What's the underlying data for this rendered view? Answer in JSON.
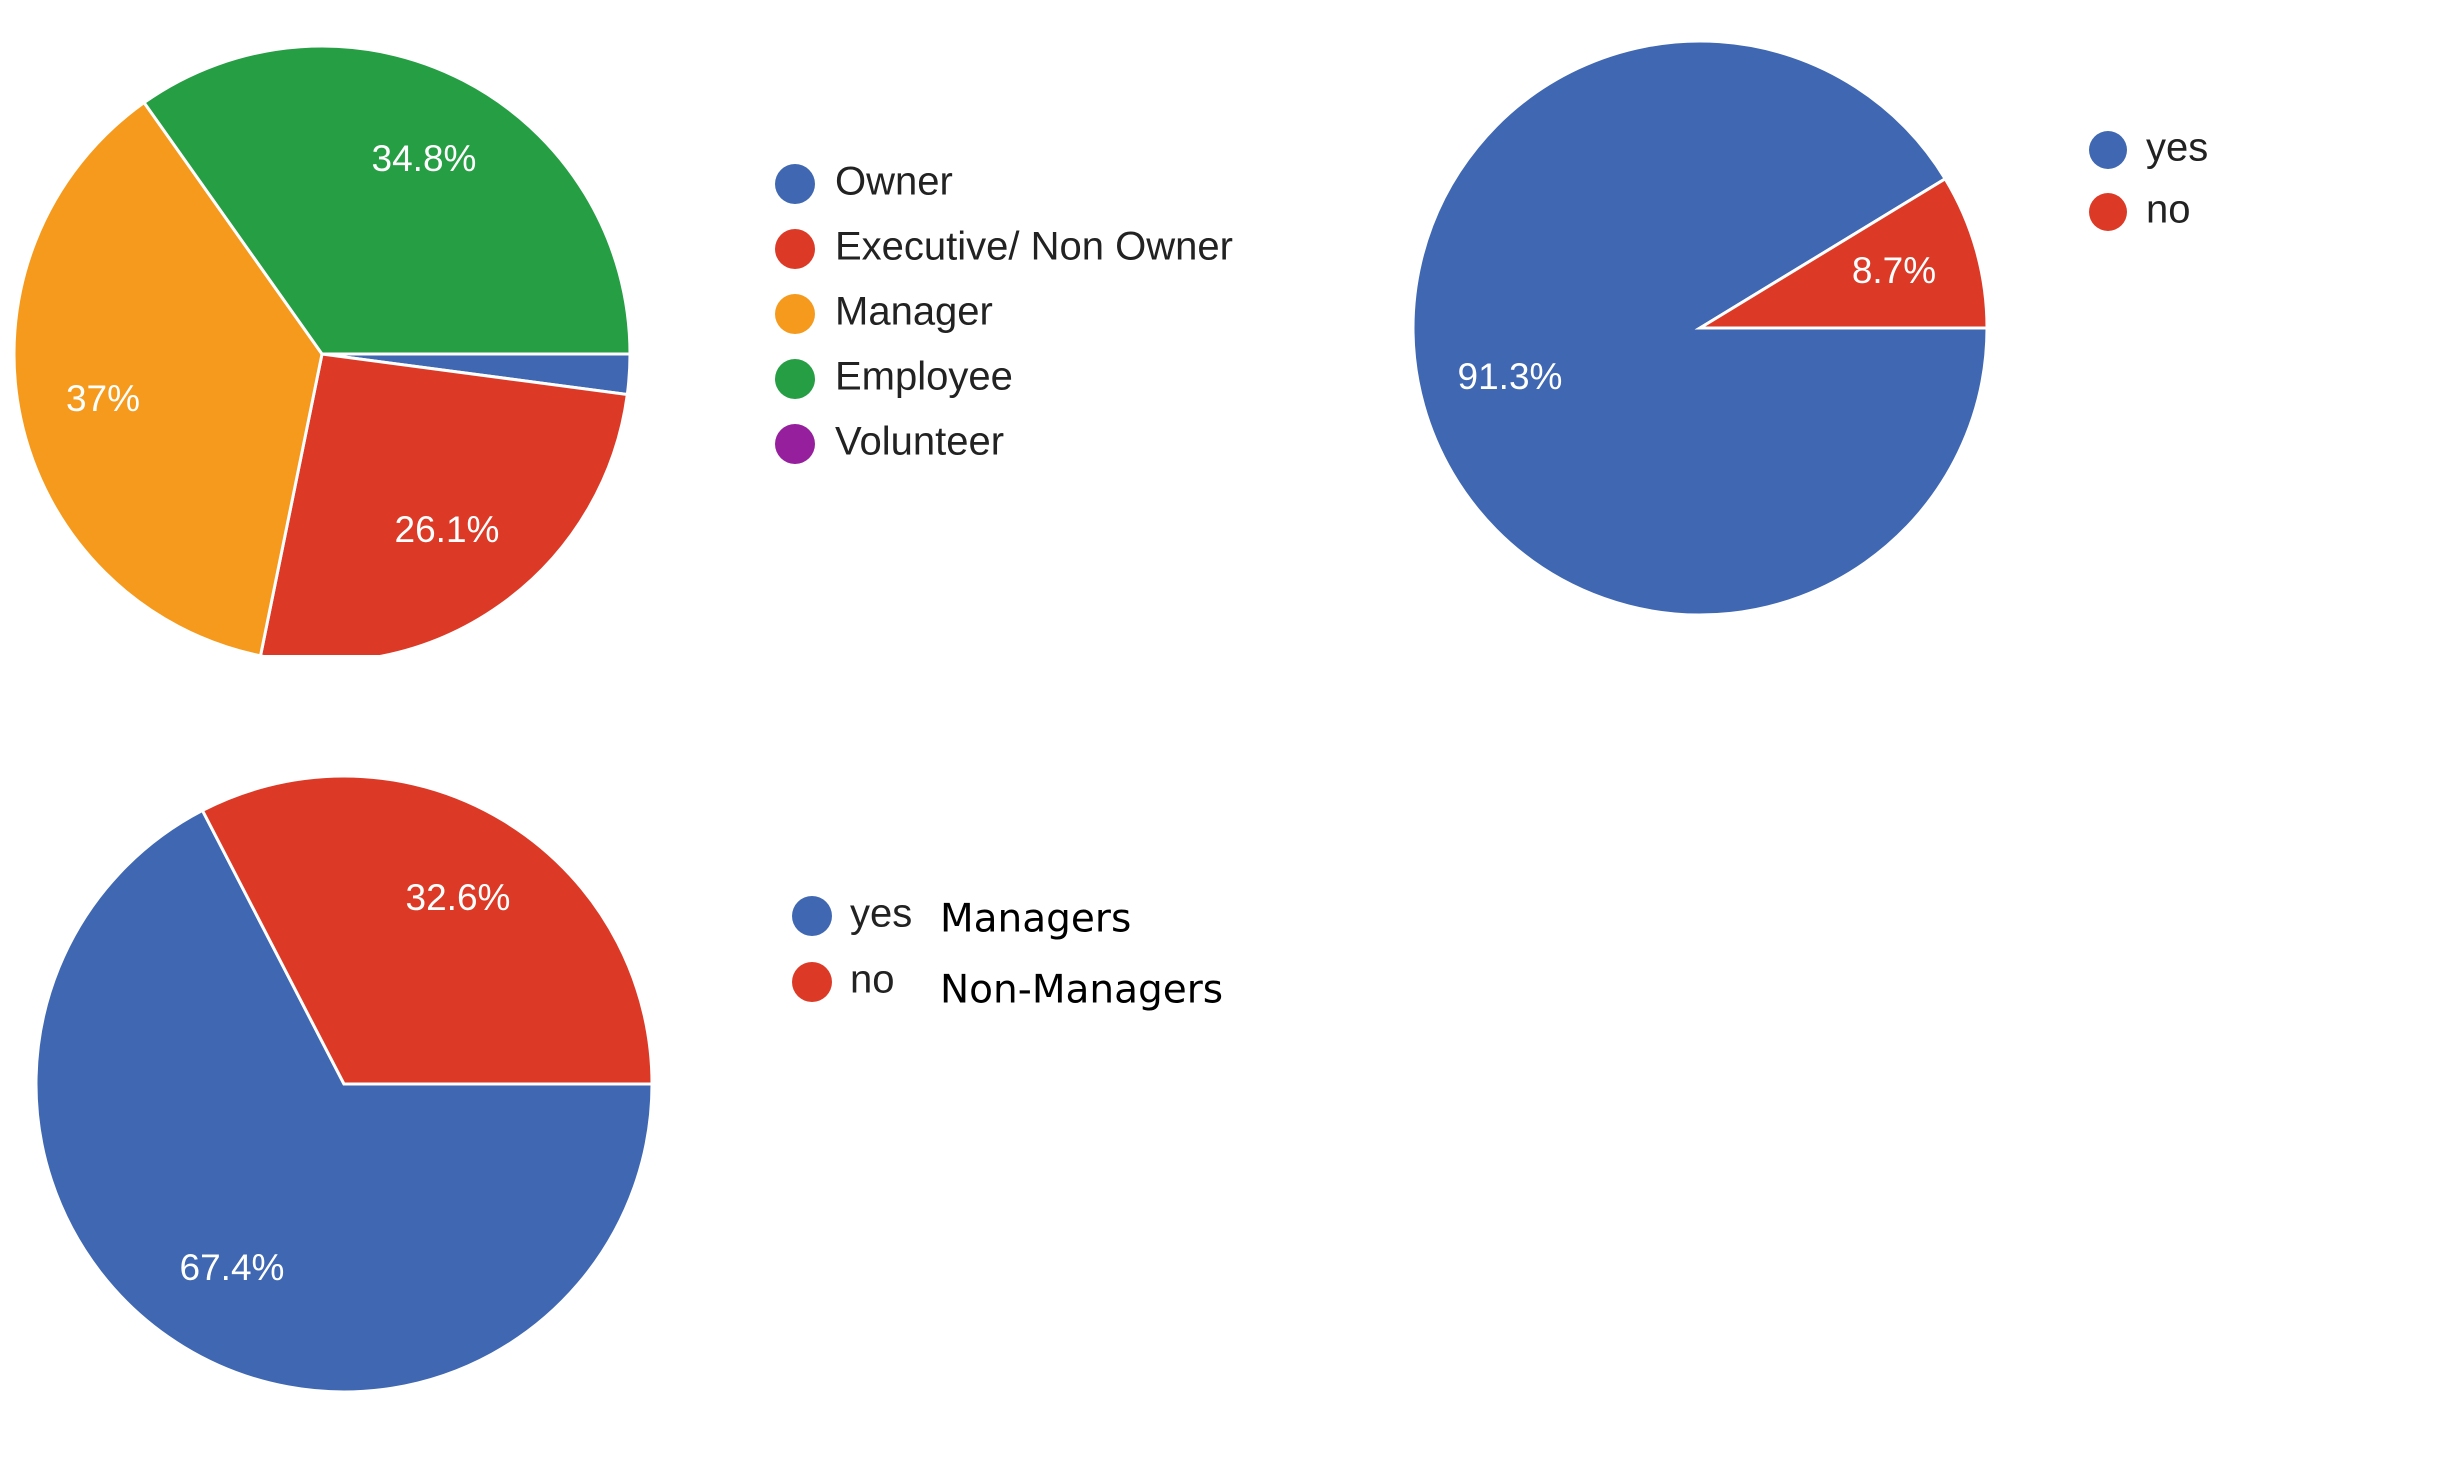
{
  "chart_data": [
    {
      "type": "pie",
      "title": "",
      "slices": [
        {
          "label": "Owner",
          "value": 2.1,
          "value_label": "",
          "color": "#3F67B2"
        },
        {
          "label": "Executive/ Non Owner",
          "value": 26.1,
          "value_label": "26.1%",
          "color": "#DC3A26"
        },
        {
          "label": "Manager",
          "value": 37,
          "value_label": "37%",
          "color": "#F59A1C"
        },
        {
          "label": "Employee",
          "value": 34.8,
          "value_label": "34.8%",
          "color": "#269E44"
        },
        {
          "label": "Volunteer",
          "value": 0,
          "value_label": "",
          "color": "#951F9D"
        }
      ],
      "legend_position": "right"
    },
    {
      "type": "pie",
      "title": "",
      "slices": [
        {
          "label": "yes",
          "value": 91.3,
          "value_label": "91.3%",
          "color": "#3F67B2"
        },
        {
          "label": "no",
          "value": 8.7,
          "value_label": "8.7%",
          "color": "#DC3A26"
        }
      ],
      "legend_position": "right"
    },
    {
      "type": "pie",
      "title": "",
      "slices": [
        {
          "label": "yes",
          "value": 67.4,
          "value_label": "67.4%",
          "color": "#3F67B2",
          "note": "Managers"
        },
        {
          "label": "no",
          "value": 32.6,
          "value_label": "32.6%",
          "color": "#DC3A26",
          "note": "Non-Managers"
        }
      ],
      "legend_position": "right"
    }
  ]
}
